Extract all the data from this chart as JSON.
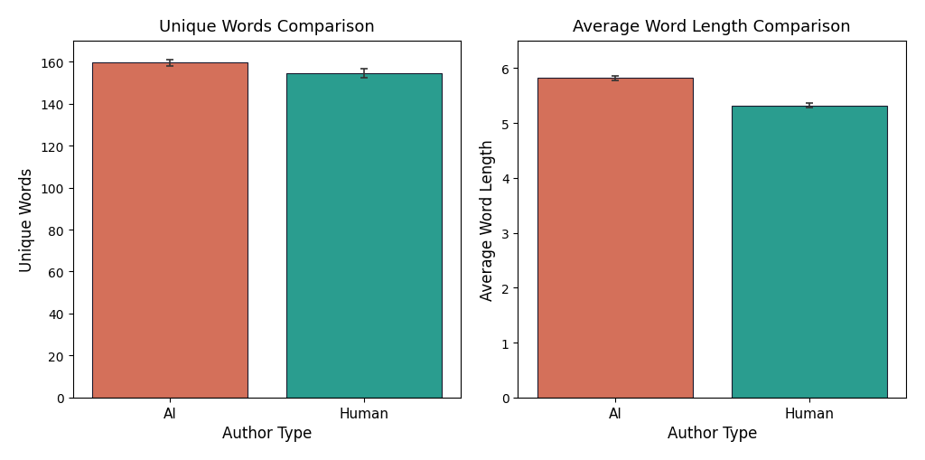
{
  "chart1": {
    "title": "Unique Words Comparison",
    "xlabel": "Author Type",
    "ylabel": "Unique Words",
    "categories": [
      "AI",
      "Human"
    ],
    "values": [
      159.5,
      154.5
    ],
    "errors": [
      1.5,
      2.0
    ],
    "colors": [
      "#d4705a",
      "#2a9d8f"
    ],
    "ylim": [
      0,
      170
    ]
  },
  "chart2": {
    "title": "Average Word Length Comparison",
    "xlabel": "Author Type",
    "ylabel": "Average Word Length",
    "categories": [
      "AI",
      "Human"
    ],
    "values": [
      5.82,
      5.32
    ],
    "errors": [
      0.04,
      0.04
    ],
    "colors": [
      "#d4705a",
      "#2a9d8f"
    ],
    "ylim": [
      0,
      6.5
    ]
  },
  "bar_width": 0.8,
  "edgecolor": "#1a1a2e",
  "figsize": [
    10.24,
    5.1
  ],
  "dpi": 100
}
